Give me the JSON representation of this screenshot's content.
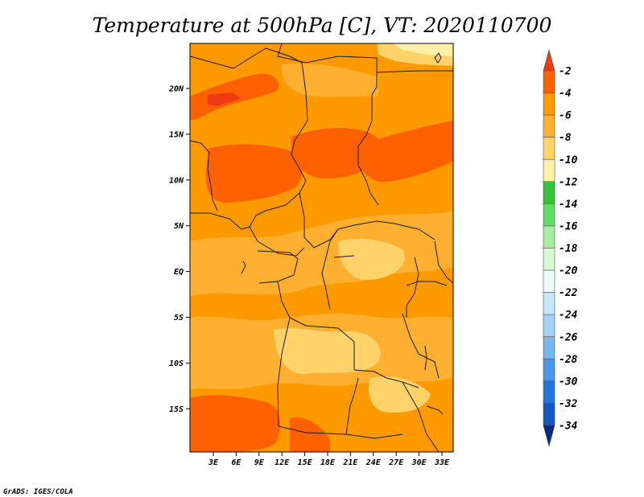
{
  "title": "Temperature at 500hPa [C], VT: 2020110700",
  "credit": "GrADS: IGES/COLA",
  "map": {
    "region": "Central Africa",
    "lat_labels": [
      "20N",
      "15N",
      "10N",
      "5N",
      "EQ",
      "5S",
      "10S",
      "15S"
    ],
    "lon_labels": [
      "3E",
      "6E",
      "9E",
      "12E",
      "15E",
      "18E",
      "21E",
      "24E",
      "27E",
      "30E",
      "33E"
    ]
  },
  "colorbar": {
    "labels": [
      "-2",
      "-4",
      "-6",
      "-8",
      "-10",
      "-12",
      "-14",
      "-16",
      "-18",
      "-20",
      "-22",
      "-24",
      "-26",
      "-28",
      "-30",
      "-32",
      "-34"
    ],
    "colors": [
      "#ff6000",
      "#ff9900",
      "#ffb030",
      "#ffd26a",
      "#fff0a8",
      "#35c43a",
      "#64dc64",
      "#a6eea0",
      "#d7f9d2",
      "#ecfcfd",
      "#c6e6fa",
      "#a2d2f6",
      "#78b6f0",
      "#4c96e8",
      "#2474dc",
      "#1256c4",
      "#08288c",
      "#000a6e"
    ],
    "top_arrow_color": "#ee3a10",
    "bottom_arrow_color": "#dcdcf6"
  }
}
